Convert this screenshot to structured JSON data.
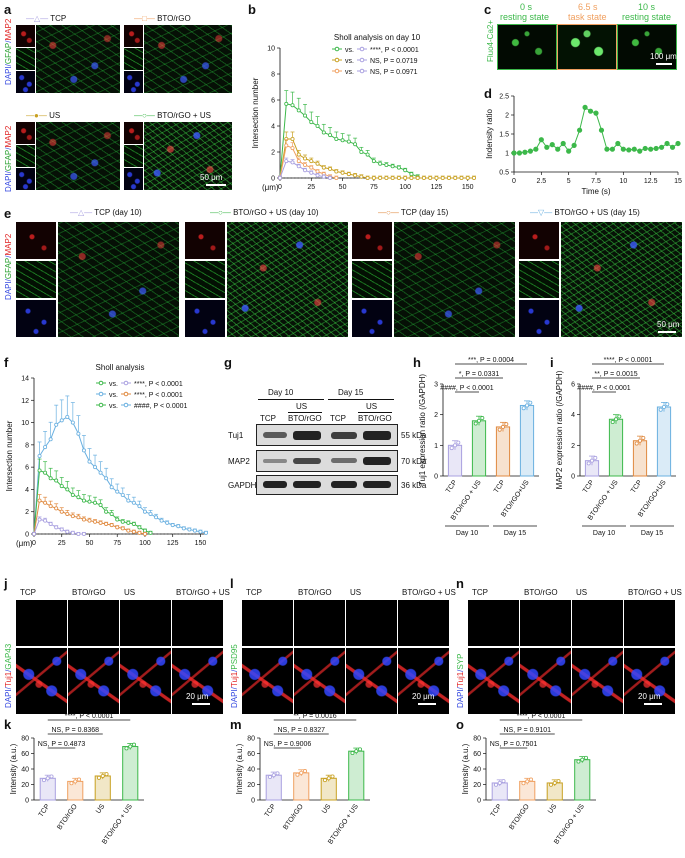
{
  "panel_letters": [
    "a",
    "b",
    "c",
    "d",
    "e",
    "f",
    "g",
    "h",
    "i",
    "j",
    "k",
    "l",
    "m",
    "n",
    "o"
  ],
  "colors": {
    "tcp": "#a9a0e0",
    "bto": "#f0a060",
    "us": "#c8a020",
    "btous": "#3cb84a",
    "tcp15": "#e08a40",
    "btous15": "#6ab0e0"
  },
  "a": {
    "ylabel_dapi": "DAPI",
    "ylabel_gfap": "GFAP",
    "ylabel_map2": "MAP2",
    "legend": [
      "TCP",
      "BTO/rGO",
      "US",
      "BTO/rGO + US"
    ],
    "scale": "50 μm"
  },
  "c": {
    "frames": [
      {
        "t": "0 s",
        "s": "resting state"
      },
      {
        "t": "6.5 s",
        "s": "task state"
      },
      {
        "t": "10 s",
        "s": "resting state"
      }
    ],
    "ylabel": "Fluo4-Ca2+",
    "scale": "100 μm"
  },
  "e": {
    "legend": [
      "TCP (day 10)",
      "BTO/rGO + US (day 10)",
      "TCP (day 15)",
      "BTO/rGO + US (day 15)"
    ],
    "scale": "50 μm"
  },
  "chart_data": [
    {
      "id": "b",
      "type": "line",
      "title": "Sholl analysis on day 10",
      "xlabel": "(μm)",
      "ylabel": "Intersection number",
      "xlim": [
        0,
        155
      ],
      "ylim": [
        0,
        10
      ],
      "xticks": [
        0,
        25,
        50,
        75,
        100,
        125,
        150
      ],
      "yticks": [
        0,
        2,
        4,
        6,
        8,
        10
      ],
      "legend": [
        {
          "text": "vs.",
          "text2": "****, P < 0.0001"
        },
        {
          "text": "vs.",
          "text2": "NS, P = 0.0719"
        },
        {
          "text": "vs.",
          "text2": "NS, P = 0.0971"
        }
      ],
      "series": [
        {
          "name": "BTO/rGO + US",
          "color": "#3cb84a",
          "x": [
            0,
            5,
            10,
            15,
            20,
            25,
            30,
            35,
            40,
            45,
            50,
            55,
            60,
            65,
            70,
            75,
            80,
            85,
            90,
            95,
            100,
            105,
            110
          ],
          "y": [
            0,
            5.7,
            5.6,
            5.2,
            4.8,
            4.3,
            4.0,
            3.5,
            3.3,
            3.0,
            2.9,
            2.8,
            2.6,
            2.0,
            1.8,
            1.3,
            1.1,
            1.0,
            0.9,
            0.8,
            0.6,
            0.3,
            0.1
          ]
        },
        {
          "name": "US",
          "color": "#c8a020",
          "x": [
            0,
            5,
            10,
            15,
            20,
            25,
            30,
            35,
            40,
            45,
            50,
            55,
            60,
            65,
            70,
            75,
            80,
            85,
            90,
            95,
            100,
            105,
            110,
            115,
            120,
            125,
            130,
            135,
            140,
            145,
            150,
            155
          ],
          "y": [
            0,
            3.0,
            3.0,
            1.8,
            1.5,
            1.3,
            1.1,
            0.8,
            0.7,
            0.5,
            0.4,
            0.3,
            0.2,
            0.1,
            0,
            0,
            0,
            0,
            0,
            0,
            0,
            0,
            0,
            0,
            0,
            0,
            0,
            0,
            0,
            0,
            0,
            0
          ]
        },
        {
          "name": "BTO/rGO",
          "color": "#f0a060",
          "x": [
            0,
            5,
            10,
            15,
            20,
            25,
            30,
            35,
            40,
            45
          ],
          "y": [
            0,
            2.5,
            2.3,
            1.3,
            1.0,
            0.8,
            0.5,
            0.3,
            0.1,
            0
          ]
        },
        {
          "name": "TCP",
          "color": "#a9a0e0",
          "x": [
            0,
            5,
            10,
            15,
            20,
            25,
            30,
            35,
            40
          ],
          "y": [
            0,
            1.3,
            1.2,
            0.9,
            0.6,
            0.4,
            0.2,
            0.1,
            0
          ]
        }
      ]
    },
    {
      "id": "d",
      "type": "line",
      "xlabel": "Time (s)",
      "ylabel": "Indensity ratio",
      "xlim": [
        0,
        15
      ],
      "ylim": [
        0.5,
        2.5
      ],
      "xticks": [
        0,
        2.5,
        5,
        7.5,
        10,
        12.5,
        15
      ],
      "yticks": [
        0.5,
        1.0,
        1.5,
        2.0,
        2.5
      ],
      "series": [
        {
          "color": "#3cb84a",
          "x": [
            0,
            0.5,
            1,
            1.5,
            2,
            2.5,
            3,
            3.5,
            4,
            4.5,
            5,
            5.5,
            6,
            6.5,
            7,
            7.5,
            8,
            8.5,
            9,
            9.5,
            10,
            10.5,
            11,
            11.5,
            12,
            12.5,
            13,
            13.5,
            14,
            14.5,
            15
          ],
          "y": [
            1.0,
            1.0,
            1.02,
            1.05,
            1.1,
            1.35,
            1.15,
            1.22,
            1.1,
            1.25,
            1.05,
            1.2,
            1.6,
            2.2,
            2.1,
            2.05,
            1.6,
            1.1,
            1.1,
            1.25,
            1.1,
            1.08,
            1.1,
            1.05,
            1.12,
            1.1,
            1.12,
            1.15,
            1.25,
            1.15,
            1.25
          ]
        }
      ]
    },
    {
      "id": "f",
      "type": "line",
      "title": "Sholl analysis",
      "xlabel": "(μm)",
      "ylabel": "Intersection number",
      "xlim": [
        0,
        155
      ],
      "ylim": [
        0,
        14
      ],
      "xticks": [
        0,
        25,
        50,
        75,
        100,
        125,
        150
      ],
      "yticks": [
        0,
        2,
        4,
        6,
        8,
        10,
        12,
        14
      ],
      "legend": [
        {
          "text": "vs.",
          "text2": "****, P < 0.0001"
        },
        {
          "text": "vs.",
          "text2": "****, P < 0.0001"
        },
        {
          "text": "vs.",
          "text2": "####, P < 0.0001"
        }
      ],
      "series": [
        {
          "name": "BTO/rGO + US (day 15)",
          "color": "#6ab0e0",
          "x": [
            0,
            5,
            10,
            15,
            20,
            25,
            30,
            35,
            40,
            45,
            50,
            55,
            60,
            65,
            70,
            75,
            80,
            85,
            90,
            95,
            100,
            105,
            110,
            115,
            120,
            125,
            130,
            135,
            140,
            145,
            150,
            155
          ],
          "y": [
            0,
            7.0,
            7.8,
            8.5,
            9.8,
            10.2,
            10.5,
            10.0,
            9.0,
            7.5,
            6.5,
            6.0,
            5.5,
            5.0,
            4.2,
            3.8,
            3.5,
            3.0,
            2.8,
            2.5,
            2.0,
            1.8,
            1.5,
            1.2,
            1.0,
            0.8,
            0.7,
            0.5,
            0.4,
            0.3,
            0.2,
            0.1
          ]
        },
        {
          "name": "BTO/rGO + US (day 10)",
          "color": "#3cb84a",
          "x": [
            0,
            5,
            10,
            15,
            20,
            25,
            30,
            35,
            40,
            45,
            50,
            55,
            60,
            65,
            70,
            75,
            80,
            85,
            90,
            95,
            100,
            105
          ],
          "y": [
            0,
            5.7,
            5.5,
            5.0,
            4.8,
            4.3,
            4.0,
            3.5,
            3.3,
            3.0,
            2.9,
            2.8,
            2.6,
            2.0,
            1.8,
            1.3,
            1.1,
            1.0,
            0.9,
            0.6,
            0.3,
            0.1
          ]
        },
        {
          "name": "TCP (day 15)",
          "color": "#e08a40",
          "x": [
            0,
            5,
            10,
            15,
            20,
            25,
            30,
            35,
            40,
            45,
            50,
            55,
            60,
            65,
            70,
            75,
            80,
            85,
            90,
            95,
            100
          ],
          "y": [
            0,
            3.0,
            2.8,
            2.5,
            2.3,
            2.0,
            1.8,
            1.6,
            1.5,
            1.3,
            1.2,
            1.1,
            1.0,
            0.9,
            0.8,
            0.6,
            0.5,
            0.3,
            0.2,
            0.1,
            0
          ]
        },
        {
          "name": "TCP (day 10)",
          "color": "#a9a0e0",
          "x": [
            0,
            5,
            10,
            15,
            20,
            25,
            30,
            35,
            40,
            45
          ],
          "y": [
            0,
            1.3,
            1.2,
            0.9,
            0.6,
            0.4,
            0.2,
            0.1,
            0,
            0
          ]
        }
      ]
    },
    {
      "id": "h",
      "type": "bar",
      "ylabel": "Tuj1 expression ratio (/GAPDH)",
      "ylim": [
        0,
        3
      ],
      "yticks": [
        0,
        1,
        2,
        3
      ],
      "categories": [
        "TCP",
        "BTO/rGO + US",
        "TCP",
        "BTO/rGO+US"
      ],
      "values": [
        1.0,
        1.8,
        1.6,
        2.3
      ],
      "colors": [
        "#a9a0e0",
        "#3cb84a",
        "#e08a40",
        "#6ab0e0"
      ],
      "groups": [
        "Day 10",
        "Day 15"
      ],
      "annotations": [
        "***, P = 0.0004",
        "*, P = 0.0331",
        "####, P < 0.0001"
      ]
    },
    {
      "id": "i",
      "type": "bar",
      "ylabel": "MAP2 expression ratio (/GAPDH)",
      "ylim": [
        0,
        6
      ],
      "yticks": [
        0,
        2,
        4,
        6
      ],
      "categories": [
        "TCP",
        "BTO/rGO + US",
        "TCP",
        "BTO/rGO+US"
      ],
      "values": [
        1.0,
        3.7,
        2.3,
        4.5
      ],
      "colors": [
        "#a9a0e0",
        "#3cb84a",
        "#e08a40",
        "#6ab0e0"
      ],
      "groups": [
        "Day 10",
        "Day 15"
      ],
      "annotations": [
        "****, P < 0.0001",
        "**, P = 0.0015",
        "####, P < 0.0001"
      ]
    },
    {
      "id": "k",
      "type": "bar",
      "ylabel": "Intensity (a.u.)",
      "ylim": [
        0,
        80
      ],
      "yticks": [
        0,
        20,
        40,
        60,
        80
      ],
      "categories": [
        "TCP",
        "BTO/rGO",
        "US",
        "BTO/rGO + US"
      ],
      "values": [
        28,
        24,
        31,
        69
      ],
      "colors": [
        "#a9a0e0",
        "#f0a060",
        "#c8a020",
        "#3cb84a"
      ],
      "annotations": [
        "****, P < 0.0001",
        "NS, P = 0.8368",
        "NS, P = 0.4873"
      ]
    },
    {
      "id": "m",
      "type": "bar",
      "ylabel": "Intensity (a.u.)",
      "ylim": [
        0,
        80
      ],
      "yticks": [
        0,
        20,
        40,
        60,
        80
      ],
      "categories": [
        "TCP",
        "BTO/rGO",
        "US",
        "BTO/rGO + US"
      ],
      "values": [
        32,
        35,
        28,
        63
      ],
      "colors": [
        "#a9a0e0",
        "#f0a060",
        "#c8a020",
        "#3cb84a"
      ],
      "annotations": [
        "**, P = 0.0016",
        "NS, P = 0.8327",
        "NS, P = 0.9006"
      ]
    },
    {
      "id": "o",
      "type": "bar",
      "ylabel": "Intensity (a.u.)",
      "ylim": [
        0,
        80
      ],
      "yticks": [
        0,
        20,
        40,
        60,
        80
      ],
      "categories": [
        "TCP",
        "BTO/rGO",
        "US",
        "BTO/rGO + US"
      ],
      "values": [
        22,
        24,
        22,
        52
      ],
      "colors": [
        "#a9a0e0",
        "#f0a060",
        "#c8a020",
        "#3cb84a"
      ],
      "annotations": [
        "****, P < 0.0001",
        "NS, P = 0.9101",
        "NS, P = 0.7501"
      ]
    }
  ],
  "g": {
    "days": [
      "Day 10",
      "Day 15"
    ],
    "us": "US",
    "lanes": [
      "TCP",
      "BTO/rGO",
      "TCP",
      "BTO/rGO"
    ],
    "rows": [
      {
        "name": "Tuj1",
        "kda": "55 kDa"
      },
      {
        "name": "MAP2",
        "kda": "70 kDa"
      },
      {
        "name": "GAPDH",
        "kda": "36 kDa"
      }
    ]
  },
  "jln": {
    "groups": [
      "TCP",
      "BTO/rGO",
      "US",
      "BTO/rGO + US"
    ],
    "markers": [
      "GAP43",
      "PSD95",
      "SYP"
    ],
    "dapi": "DAPI",
    "tuj1": "Tuj1",
    "scale": "20 μm"
  }
}
